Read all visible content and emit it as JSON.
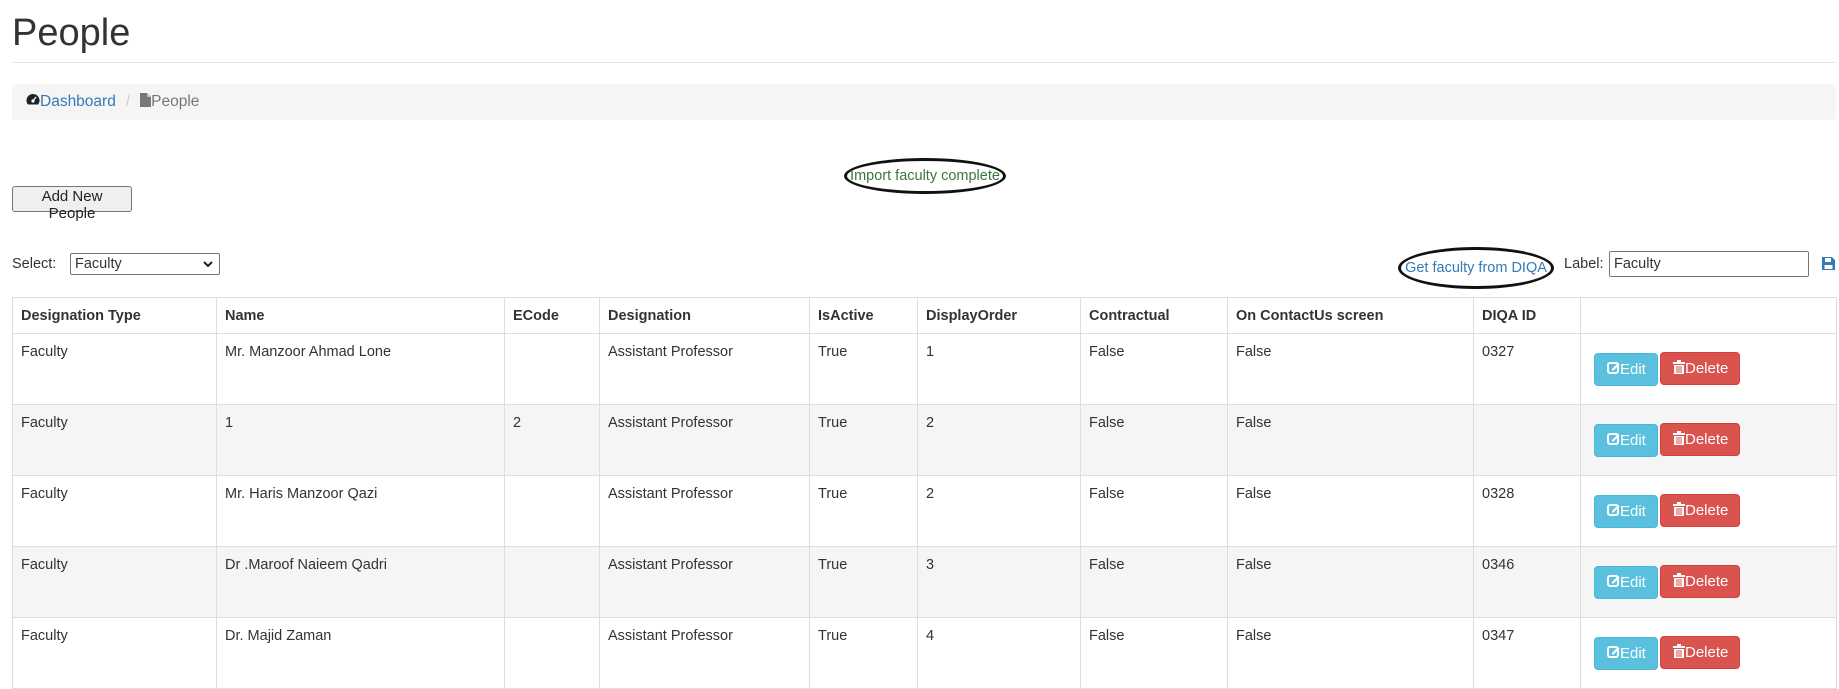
{
  "page": {
    "title": "People"
  },
  "breadcrumb": [
    {
      "label": "Dashboard",
      "icon": "dashboard-icon"
    },
    {
      "label": "People",
      "icon": "file-icon"
    }
  ],
  "status_message": "Import faculty complete",
  "add_button": "Add New People",
  "filter": {
    "label": "Select:",
    "value": "Faculty"
  },
  "diqa_link": "Get faculty from DIQA",
  "label_field": {
    "label": "Label:",
    "value": "Faculty"
  },
  "colors": {
    "link": "#337ab7",
    "success": "#3c763d",
    "edit": "#5bc0de",
    "delete": "#d9534f"
  },
  "table": {
    "headers": [
      "Designation Type",
      "Name",
      "ECode",
      "Designation",
      "IsActive",
      "DisplayOrder",
      "Contractual",
      "On ContactUs screen",
      "DIQA ID",
      ""
    ],
    "rows": [
      [
        "Faculty",
        "Mr. Manzoor Ahmad Lone",
        "",
        "Assistant Professor",
        "True",
        "1",
        "False",
        "False",
        "0327"
      ],
      [
        "Faculty",
        "1",
        "2",
        "Assistant Professor",
        "True",
        "2",
        "False",
        "False",
        ""
      ],
      [
        "Faculty",
        "Mr. Haris Manzoor Qazi",
        "",
        "Assistant Professor",
        "True",
        "2",
        "False",
        "False",
        "0328"
      ],
      [
        "Faculty",
        "Dr .Maroof Naieem Qadri",
        "",
        "Assistant Professor",
        "True",
        "3",
        "False",
        "False",
        "0346"
      ],
      [
        "Faculty",
        "Dr. Majid Zaman",
        "",
        "Assistant Professor",
        "True",
        "4",
        "False",
        "False",
        "0347"
      ]
    ],
    "edit_label": "Edit",
    "delete_label": "Delete"
  }
}
